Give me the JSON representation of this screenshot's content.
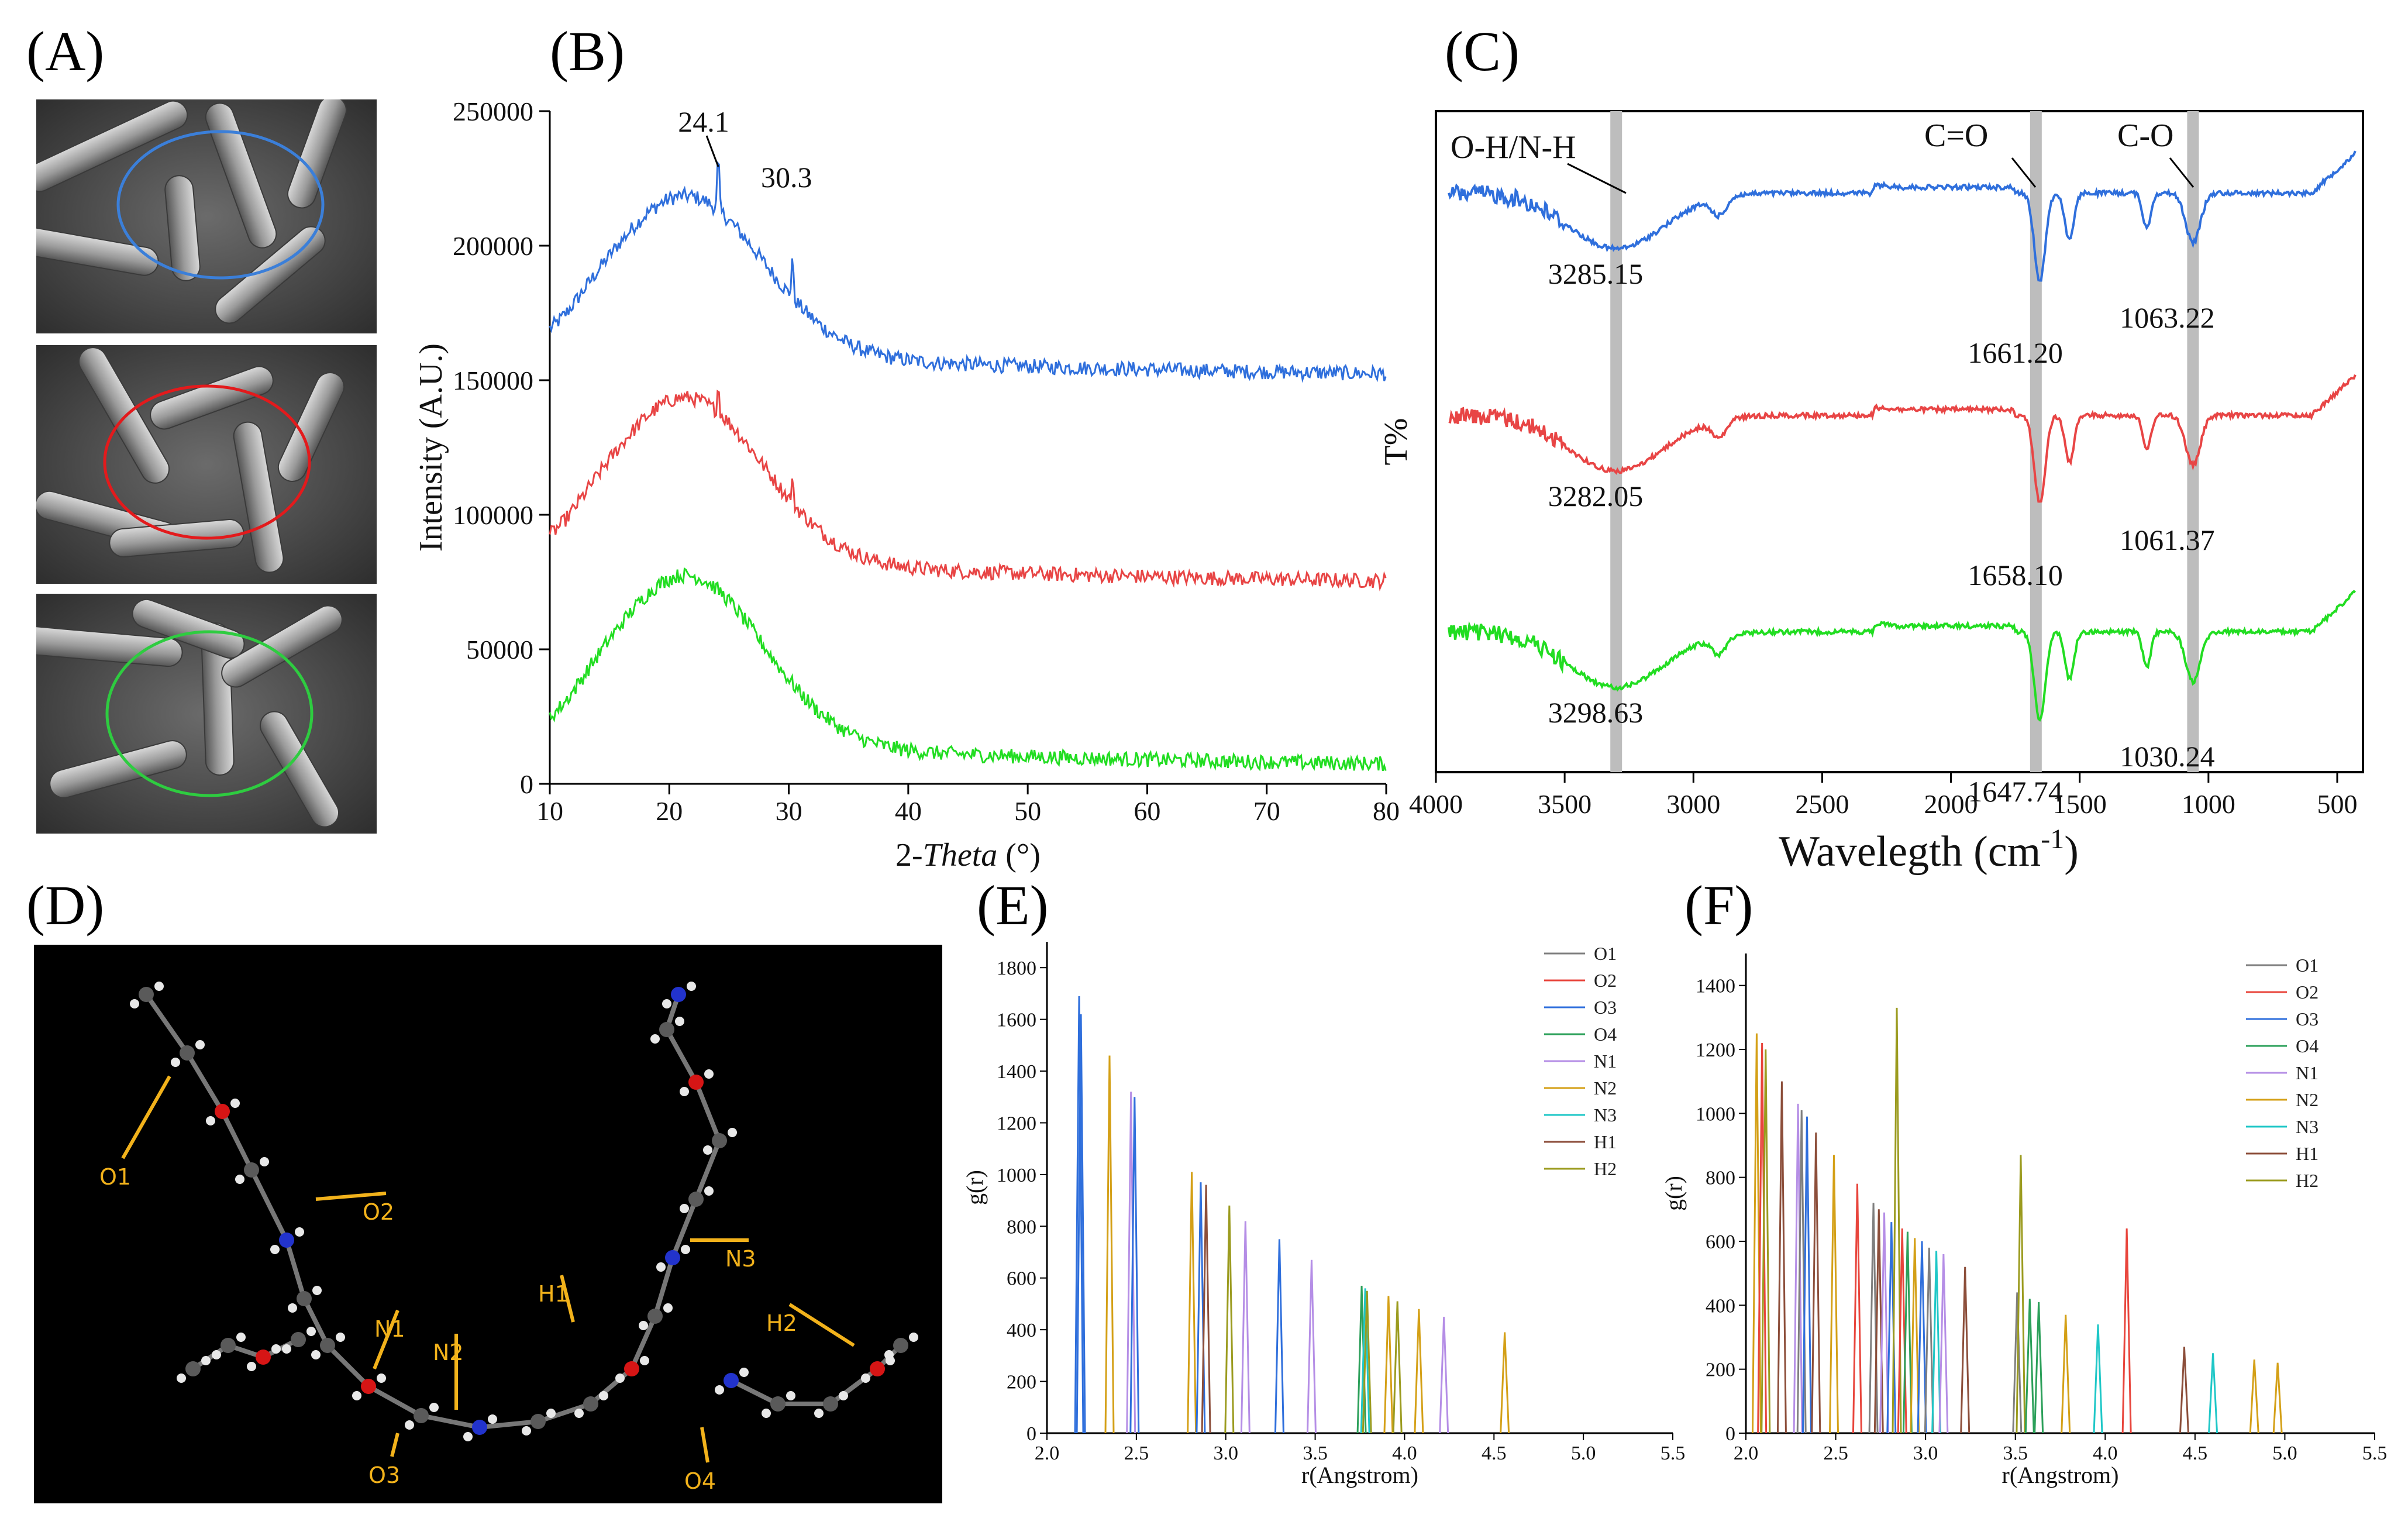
{
  "figure": {
    "panels": [
      "(A)",
      "(B)",
      "(C)",
      "(D)",
      "(E)",
      "(F)"
    ],
    "sem_images": [
      {
        "name": "sem-image-top",
        "ring_color": "#3b7fd9"
      },
      {
        "name": "sem-image-middle",
        "ring_color": "#e31a1c"
      },
      {
        "name": "sem-image-bottom",
        "ring_color": "#2ecc40"
      }
    ],
    "molecule_labels": [
      "O1",
      "O2",
      "N1",
      "N2",
      "H1",
      "N3",
      "H2",
      "O3",
      "O4"
    ],
    "colors": {
      "blue": "#2f6fdc",
      "red": "#e84545",
      "green": "#22dd22",
      "band": "#bdbdbd",
      "label_orange": "#f2b21b"
    }
  },
  "chart_data": [
    {
      "panel": "(B)",
      "type": "line",
      "title": "",
      "xlabel_prefix": "2-",
      "xlabel_italic": "Theta",
      "xlabel_suffix": " (°)",
      "ylabel": "Intensity (A.U.)",
      "xlim": [
        10,
        80
      ],
      "ylim": [
        0,
        250000
      ],
      "xticks": [
        "10",
        "20",
        "30",
        "40",
        "50",
        "60",
        "70",
        "80"
      ],
      "yticks": [
        "0",
        "50000",
        "100000",
        "150000",
        "200000",
        "250000"
      ],
      "annotations": [
        {
          "text": "24.1",
          "x": 24.1
        },
        {
          "text": "30.3",
          "x": 30.3
        }
      ],
      "series": [
        {
          "name": "blue",
          "color": "#2f6fdc",
          "base": 150000,
          "hump": 58000,
          "tail_end": 155000,
          "peaks": [
            [
              24.1,
              20000
            ],
            [
              30.3,
              15000
            ]
          ]
        },
        {
          "name": "red",
          "color": "#e84545",
          "base": 73000,
          "hump": 60000,
          "tail_end": 77000,
          "peaks": [
            [
              24.1,
              10000
            ],
            [
              30.3,
              8000
            ]
          ]
        },
        {
          "name": "green",
          "color": "#22dd22",
          "base": 5000,
          "hump": 62000,
          "tail_end": 9000,
          "peaks": []
        }
      ]
    },
    {
      "panel": "(C)",
      "type": "line",
      "title": "",
      "xlabel": "Wavelegth (cm",
      "xlabel_sup": "-1",
      "xlabel_end": ")",
      "ylabel": "T%",
      "xlim": [
        4000,
        400
      ],
      "xticks": [
        "4000",
        "3500",
        "3000",
        "2500",
        "2000",
        "1500",
        "1000",
        "500"
      ],
      "bands": [
        {
          "label": "O-H/N-H",
          "x": 3300
        },
        {
          "label": "C=O",
          "x": 1670
        },
        {
          "label": "C-O",
          "x": 1060
        }
      ],
      "peak_labels": {
        "blue": [
          "3285.15",
          "1661.20",
          "1063.22"
        ],
        "red": [
          "3282.05",
          "1658.10",
          "1061.37"
        ],
        "green": [
          "3298.63",
          "1647.74",
          "1030.24"
        ]
      },
      "series": [
        {
          "name": "blue",
          "color": "#2f6fdc"
        },
        {
          "name": "red",
          "color": "#e84545"
        },
        {
          "name": "green",
          "color": "#22dd22"
        }
      ]
    },
    {
      "panel": "(E)",
      "type": "line",
      "xlabel": "r(Angstrom)",
      "ylabel": "g(r)",
      "xlim": [
        2.0,
        5.5
      ],
      "ylim": [
        0,
        1900
      ],
      "xticks": [
        "2.0",
        "2.5",
        "3.0",
        "3.5",
        "4.0",
        "4.5",
        "5.0",
        "5.5"
      ],
      "yticks": [
        "0",
        "200",
        "400",
        "600",
        "800",
        "1000",
        "1200",
        "1400",
        "1600",
        "1800"
      ],
      "legend": [
        "O1",
        "O2",
        "O3",
        "O4",
        "N1",
        "N2",
        "N3",
        "H1",
        "H2"
      ],
      "series_colors": [
        "#7f7f7f",
        "#e8453c",
        "#2f6fdc",
        "#2ca05a",
        "#b58ee6",
        "#d4a017",
        "#1fc7c7",
        "#8c4e3a",
        "#9b9b1f"
      ],
      "peaks": [
        [
          2.18,
          1690,
          2
        ],
        [
          2.19,
          1620,
          2
        ],
        [
          2.35,
          1460,
          5
        ],
        [
          2.47,
          1320,
          4
        ],
        [
          2.49,
          1300,
          2
        ],
        [
          2.81,
          1010,
          5
        ],
        [
          2.86,
          970,
          2
        ],
        [
          2.89,
          960,
          7
        ],
        [
          3.02,
          880,
          8
        ],
        [
          3.11,
          820,
          4
        ],
        [
          3.3,
          750,
          2
        ],
        [
          3.48,
          670,
          4
        ],
        [
          3.76,
          570,
          3
        ],
        [
          3.78,
          560,
          6
        ],
        [
          3.79,
          550,
          8
        ],
        [
          3.91,
          530,
          5
        ],
        [
          3.96,
          510,
          8
        ],
        [
          4.08,
          480,
          5
        ],
        [
          4.22,
          450,
          4
        ],
        [
          4.56,
          390,
          5
        ]
      ]
    },
    {
      "panel": "(F)",
      "type": "line",
      "xlabel": "r(Angstrom)",
      "ylabel": "g(r)",
      "xlim": [
        2.0,
        5.5
      ],
      "ylim": [
        0,
        1500
      ],
      "xticks": [
        "2.0",
        "2.5",
        "3.0",
        "3.5",
        "4.0",
        "4.5",
        "5.0",
        "5.5"
      ],
      "yticks": [
        "0",
        "200",
        "400",
        "600",
        "800",
        "1000",
        "1200",
        "1400"
      ],
      "legend": [
        "O1",
        "O2",
        "O3",
        "O4",
        "N1",
        "N2",
        "N3",
        "H1",
        "H2"
      ],
      "series_colors": [
        "#7f7f7f",
        "#e8453c",
        "#2f6fdc",
        "#2ca05a",
        "#b58ee6",
        "#d4a017",
        "#1fc7c7",
        "#8c4e3a",
        "#9b9b1f"
      ],
      "peaks": [
        [
          2.06,
          1250,
          5
        ],
        [
          2.09,
          1220,
          1
        ],
        [
          2.11,
          1200,
          8
        ],
        [
          2.2,
          1100,
          7
        ],
        [
          2.29,
          1030,
          4
        ],
        [
          2.31,
          1010,
          0
        ],
        [
          2.34,
          990,
          2
        ],
        [
          2.39,
          940,
          7
        ],
        [
          2.49,
          870,
          5
        ],
        [
          2.62,
          780,
          1
        ],
        [
          2.71,
          720,
          0
        ],
        [
          2.74,
          700,
          7
        ],
        [
          2.77,
          690,
          4
        ],
        [
          2.81,
          660,
          2
        ],
        [
          2.84,
          1330,
          8
        ],
        [
          2.87,
          640,
          1
        ],
        [
          2.9,
          630,
          3
        ],
        [
          2.94,
          610,
          5
        ],
        [
          2.98,
          600,
          2
        ],
        [
          3.02,
          580,
          0
        ],
        [
          3.06,
          570,
          6
        ],
        [
          3.1,
          560,
          4
        ],
        [
          3.22,
          520,
          7
        ],
        [
          3.51,
          440,
          0
        ],
        [
          3.53,
          870,
          8
        ],
        [
          3.58,
          420,
          3
        ],
        [
          3.63,
          410,
          3
        ],
        [
          3.78,
          370,
          5
        ],
        [
          3.96,
          340,
          6
        ],
        [
          4.12,
          640,
          1
        ],
        [
          4.44,
          270,
          7
        ],
        [
          4.6,
          250,
          6
        ],
        [
          4.83,
          230,
          5
        ],
        [
          4.96,
          220,
          5
        ]
      ]
    }
  ]
}
